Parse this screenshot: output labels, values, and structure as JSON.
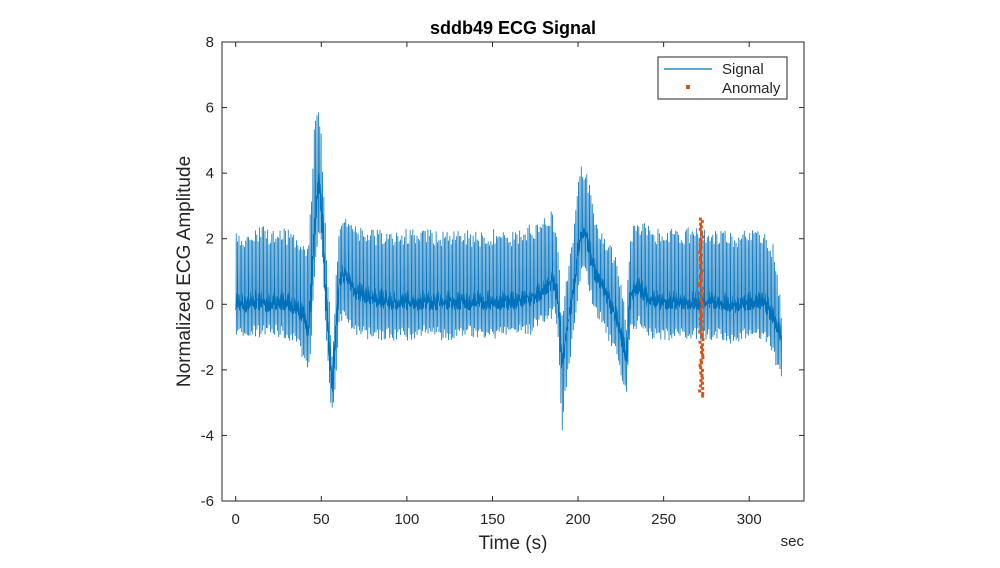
{
  "chart_data": {
    "type": "line",
    "title": "sddb49 ECG Signal",
    "xlabel": "Time (s)",
    "ylabel": "Normalized ECG Amplitude",
    "x_units_label": "sec",
    "xlim": [
      -8,
      332
    ],
    "ylim": [
      -6,
      8
    ],
    "xticks": [
      0,
      50,
      100,
      150,
      200,
      250,
      300
    ],
    "yticks": [
      -6,
      -4,
      -2,
      0,
      2,
      4,
      6,
      8
    ],
    "grid": false,
    "legend_position": "top-right",
    "colors": {
      "signal": "#0072BD",
      "anomaly": "#D95319",
      "axes": "#262626"
    },
    "series": [
      {
        "name": "Signal",
        "kind": "line",
        "x": [
          0,
          5,
          10,
          15,
          20,
          25,
          30,
          35,
          40,
          42,
          44,
          46,
          48,
          50,
          52,
          54,
          56,
          58,
          60,
          62,
          65,
          70,
          80,
          90,
          100,
          110,
          120,
          130,
          140,
          150,
          160,
          170,
          175,
          180,
          185,
          187,
          189,
          190,
          192,
          194,
          196,
          198,
          200,
          202,
          204,
          206,
          208,
          210,
          214,
          218,
          222,
          226,
          228,
          230,
          235,
          240,
          245,
          250,
          260,
          270,
          280,
          290,
          300,
          305,
          310,
          314,
          316,
          318,
          319
        ],
        "baseline": [
          0.0,
          -0.1,
          0.0,
          0.0,
          -0.1,
          0.0,
          0.0,
          -0.2,
          -0.5,
          -0.9,
          0.5,
          2.5,
          3.6,
          2.8,
          0.5,
          -1.2,
          -2.5,
          -1.0,
          0.5,
          0.9,
          0.7,
          0.3,
          0.1,
          0.0,
          0.0,
          0.0,
          0.0,
          0.0,
          0.0,
          0.0,
          0.0,
          0.1,
          0.2,
          0.4,
          0.6,
          0.4,
          -0.5,
          -2.0,
          -1.2,
          -0.5,
          0.0,
          0.8,
          1.7,
          2.2,
          2.1,
          1.6,
          1.2,
          0.8,
          0.5,
          0.0,
          -0.5,
          -1.2,
          -1.8,
          0.2,
          0.5,
          0.1,
          0.0,
          0.0,
          0.0,
          0.0,
          0.0,
          -0.1,
          0.0,
          0.0,
          -0.1,
          -0.5,
          -0.8,
          -1.0,
          -1.3
        ],
        "peak": [
          2.3,
          2.2,
          2.3,
          2.4,
          2.3,
          2.4,
          2.3,
          2.2,
          2.0,
          1.8,
          3.5,
          5.8,
          6.3,
          5.0,
          2.5,
          0.5,
          -1.5,
          0.5,
          2.5,
          2.9,
          2.6,
          2.4,
          2.3,
          2.2,
          2.3,
          2.3,
          2.2,
          2.3,
          2.2,
          2.3,
          2.2,
          2.4,
          2.5,
          2.7,
          2.9,
          2.2,
          1.0,
          -0.5,
          0.5,
          1.2,
          1.8,
          2.8,
          3.8,
          4.3,
          4.2,
          3.8,
          3.2,
          2.6,
          2.2,
          1.9,
          1.5,
          0.5,
          -0.3,
          2.3,
          2.6,
          2.4,
          2.3,
          2.3,
          2.3,
          2.4,
          2.3,
          2.2,
          2.3,
          2.3,
          2.2,
          1.8,
          1.0,
          0.2,
          -0.3
        ],
        "trough": [
          -1.0,
          -1.1,
          -1.0,
          -1.0,
          -1.0,
          -1.0,
          -1.1,
          -1.3,
          -1.8,
          -2.4,
          -1.0,
          1.0,
          2.0,
          1.5,
          -0.5,
          -2.5,
          -3.4,
          -2.4,
          -0.8,
          -0.5,
          -0.6,
          -1.0,
          -1.1,
          -1.1,
          -1.1,
          -1.0,
          -1.1,
          -1.1,
          -1.0,
          -1.1,
          -1.0,
          -1.0,
          -0.8,
          -0.6,
          -0.4,
          -0.6,
          -2.0,
          -4.1,
          -3.0,
          -2.0,
          -1.4,
          -0.5,
          0.4,
          0.9,
          0.8,
          0.4,
          0.0,
          -0.4,
          -0.7,
          -1.2,
          -1.7,
          -2.4,
          -3.0,
          -1.0,
          -0.7,
          -1.0,
          -1.1,
          -1.1,
          -1.1,
          -1.1,
          -1.1,
          -1.2,
          -1.1,
          -1.1,
          -1.2,
          -1.7,
          -2.0,
          -2.3,
          -2.7
        ]
      },
      {
        "name": "Anomaly",
        "kind": "scatter",
        "x_range": [
          271,
          273
        ],
        "y_range": [
          -2.8,
          2.6
        ]
      }
    ]
  }
}
